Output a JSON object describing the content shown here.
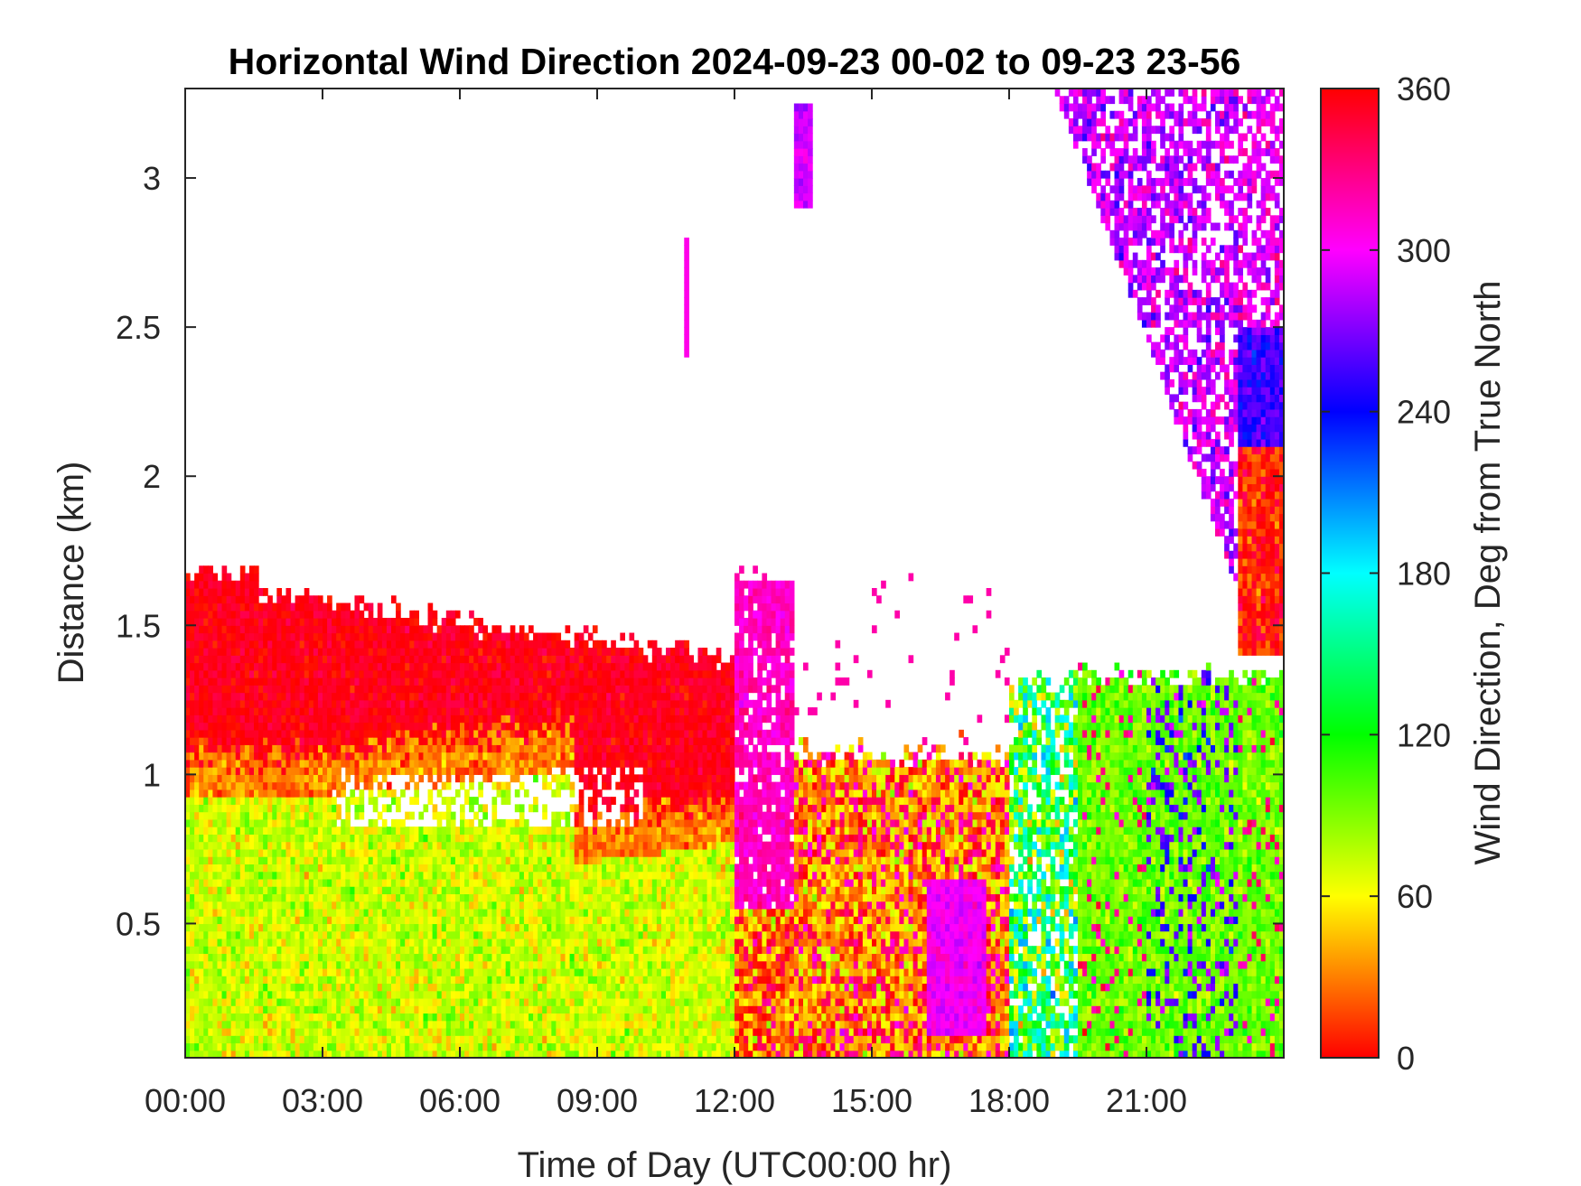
{
  "chart_data": {
    "type": "heatmap",
    "title": "Horizontal Wind Direction 2024-09-23 00-02 to 09-23 23-56",
    "xlabel": "Time of Day (UTC00:00 hr)",
    "ylabel": "Distance (km)",
    "xlim_hours": [
      0,
      24
    ],
    "ylim_km": [
      0.05,
      3.3
    ],
    "x_ticks": [
      {
        "value": 0,
        "label": "00:00"
      },
      {
        "value": 3,
        "label": "03:00"
      },
      {
        "value": 6,
        "label": "06:00"
      },
      {
        "value": 9,
        "label": "09:00"
      },
      {
        "value": 12,
        "label": "12:00"
      },
      {
        "value": 15,
        "label": "15:00"
      },
      {
        "value": 18,
        "label": "18:00"
      },
      {
        "value": 21,
        "label": "21:00"
      }
    ],
    "y_ticks": [
      {
        "value": 0.5,
        "label": "0.5"
      },
      {
        "value": 1,
        "label": "1"
      },
      {
        "value": 1.5,
        "label": "1.5"
      },
      {
        "value": 2,
        "label": "2"
      },
      {
        "value": 2.5,
        "label": "2.5"
      },
      {
        "value": 3,
        "label": "3"
      }
    ],
    "colorbar": {
      "label": "Wind Direction, Deg from True North",
      "range": [
        0,
        360
      ],
      "ticks": [
        {
          "value": 0,
          "label": "0"
        },
        {
          "value": 60,
          "label": "60"
        },
        {
          "value": 120,
          "label": "120"
        },
        {
          "value": 180,
          "label": "180"
        },
        {
          "value": 240,
          "label": "240"
        },
        {
          "value": 300,
          "label": "300"
        },
        {
          "value": 360,
          "label": "360"
        }
      ],
      "colormap": "hsv",
      "colors": [
        "#ff0000",
        "#ffff00",
        "#00ff00",
        "#00ffff",
        "#0000ff",
        "#ff00ff",
        "#ff0000"
      ]
    },
    "regions": [
      {
        "description": "low-level easterly",
        "t_start": 0,
        "t_end": 12,
        "z_min": 0.05,
        "z_max": 1.05,
        "direction_deg": 75
      },
      {
        "description": "elevated southerly-north red layer",
        "t_start": 0,
        "t_end": 12,
        "z_min": 1.05,
        "z_max": 1.65,
        "direction_deg": 355
      },
      {
        "description": "midday magenta column",
        "t_start": 12,
        "t_end": 13.2,
        "z_min": 0.55,
        "z_max": 1.65,
        "direction_deg": 320
      },
      {
        "description": "afternoon mixed layer",
        "t_start": 12,
        "t_end": 18,
        "z_min": 0.05,
        "z_max": 1.05,
        "direction_deg": 40
      },
      {
        "description": "late afternoon magenta",
        "t_start": 16,
        "t_end": 17.5,
        "z_min": 0.1,
        "z_max": 0.7,
        "direction_deg": 300
      },
      {
        "description": "evening green",
        "t_start": 18,
        "t_end": 24,
        "z_min": 0.05,
        "z_max": 1.35,
        "direction_deg": 105
      },
      {
        "description": "upper-level magenta/blue",
        "t_start": 19,
        "t_end": 24,
        "z_min": 2.2,
        "z_max": 3.3,
        "direction_deg": 290
      },
      {
        "description": "late-night red layer",
        "t_start": 23,
        "t_end": 24,
        "z_min": 1.3,
        "z_max": 2.1,
        "direction_deg": 5
      }
    ]
  }
}
